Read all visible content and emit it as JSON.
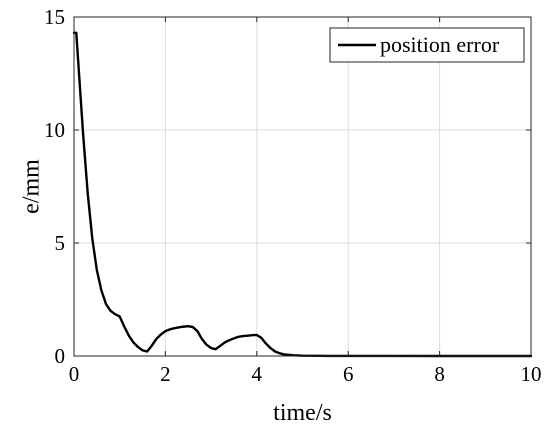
{
  "chart_data": {
    "type": "line",
    "title": "",
    "xlabel": "time/s",
    "ylabel": "e/mm",
    "xlim": [
      0,
      10
    ],
    "ylim": [
      0,
      15
    ],
    "xticks": [
      0,
      2,
      4,
      6,
      8,
      10
    ],
    "yticks": [
      0,
      5,
      10,
      15
    ],
    "grid": true,
    "legend_position": "top-right",
    "series": [
      {
        "name": "position error",
        "color": "#000000",
        "x": [
          0,
          0.05,
          0.12,
          0.2,
          0.3,
          0.4,
          0.5,
          0.6,
          0.7,
          0.8,
          0.9,
          0.95,
          1.0,
          1.1,
          1.2,
          1.3,
          1.4,
          1.5,
          1.6,
          1.7,
          1.8,
          1.9,
          2.0,
          2.1,
          2.2,
          2.3,
          2.4,
          2.5,
          2.6,
          2.7,
          2.8,
          2.9,
          3.0,
          3.1,
          3.2,
          3.3,
          3.4,
          3.5,
          3.6,
          3.7,
          3.8,
          3.9,
          4.0,
          4.1,
          4.2,
          4.3,
          4.4,
          4.5,
          4.6,
          4.8,
          5.0,
          5.3,
          5.6,
          6.0,
          7.0,
          8.0,
          9.0,
          10.0
        ],
        "y": [
          14.3,
          14.3,
          12.2,
          9.8,
          7.2,
          5.2,
          3.8,
          2.9,
          2.3,
          2.0,
          1.85,
          1.8,
          1.75,
          1.3,
          0.9,
          0.6,
          0.4,
          0.25,
          0.2,
          0.45,
          0.75,
          0.95,
          1.1,
          1.18,
          1.23,
          1.27,
          1.3,
          1.32,
          1.28,
          1.1,
          0.75,
          0.5,
          0.35,
          0.3,
          0.45,
          0.6,
          0.7,
          0.78,
          0.85,
          0.88,
          0.9,
          0.92,
          0.93,
          0.8,
          0.55,
          0.35,
          0.2,
          0.12,
          0.07,
          0.03,
          0.015,
          0.01,
          0.005,
          0.002,
          0.001,
          0.0,
          0.0,
          0.0
        ]
      }
    ]
  }
}
